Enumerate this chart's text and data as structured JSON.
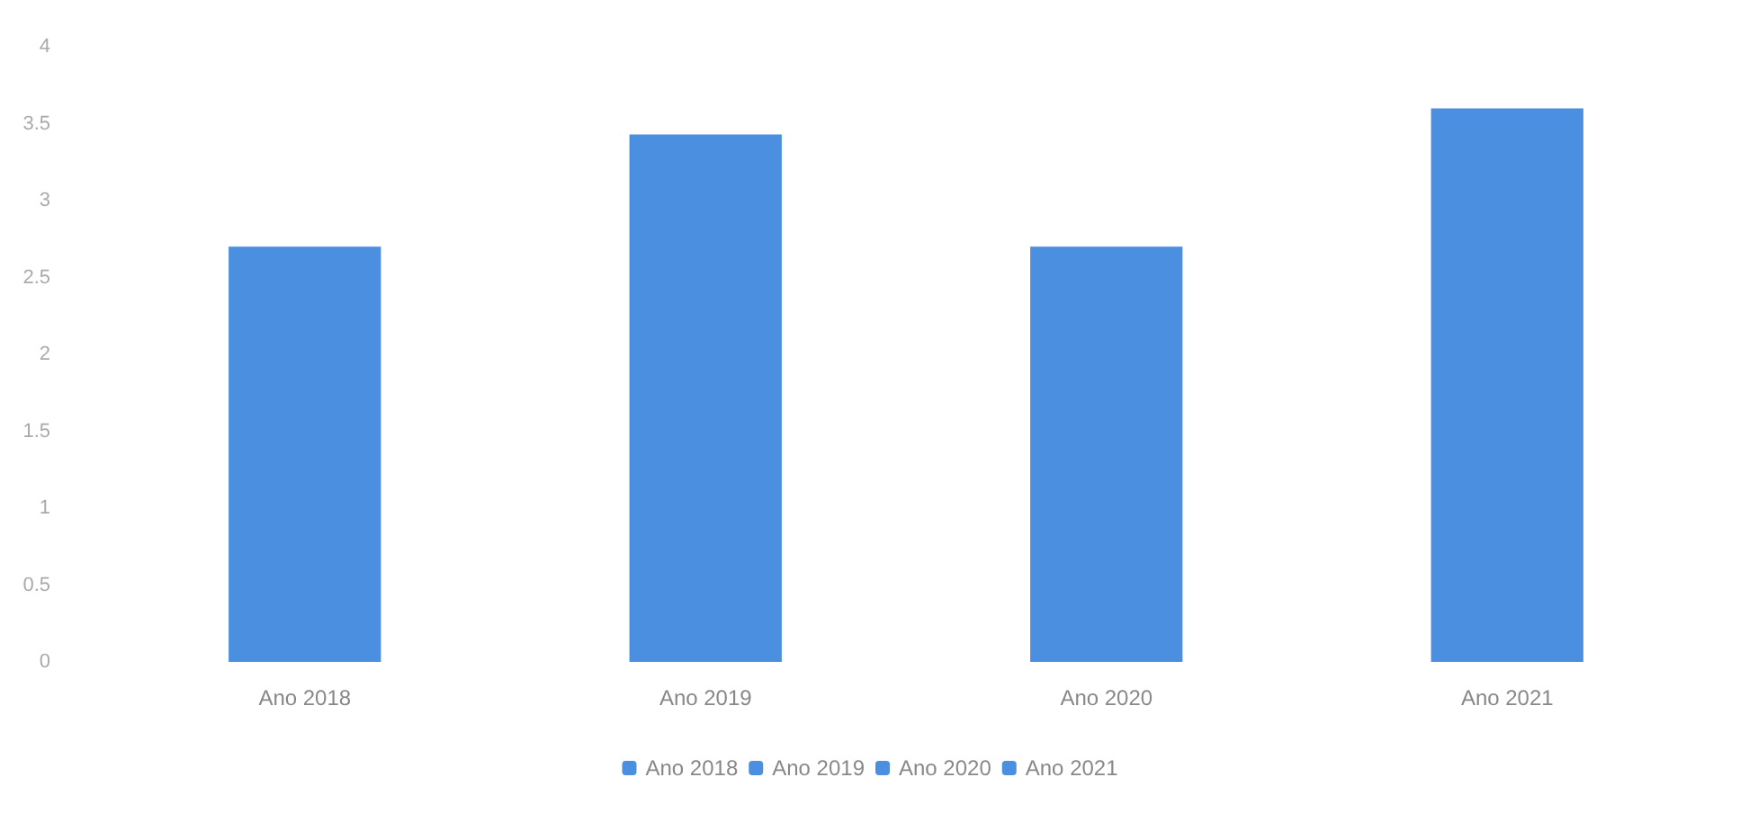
{
  "chart_data": {
    "type": "bar",
    "categories": [
      "Ano 2018",
      "Ano 2019",
      "Ano 2020",
      "Ano 2021"
    ],
    "series": [
      {
        "name": "Ano 2018",
        "color": "#4a8fe0",
        "values": [
          2.7,
          null,
          null,
          null
        ]
      },
      {
        "name": "Ano 2019",
        "color": "#4a8fe0",
        "values": [
          null,
          3.43,
          null,
          null
        ]
      },
      {
        "name": "Ano 2020",
        "color": "#4a8fe0",
        "values": [
          null,
          null,
          2.7,
          null
        ]
      },
      {
        "name": "Ano 2021",
        "color": "#4a8fe0",
        "values": [
          null,
          null,
          null,
          3.6
        ]
      }
    ],
    "ylim": [
      0,
      4
    ],
    "yticks": [
      0,
      0.5,
      1,
      1.5,
      2,
      2.5,
      3,
      3.5,
      4
    ],
    "grid": false,
    "legend": "bottom"
  }
}
